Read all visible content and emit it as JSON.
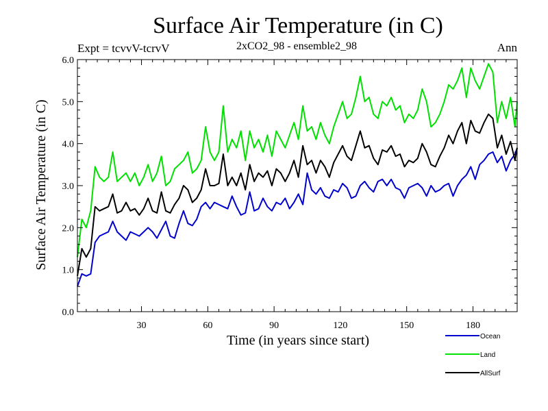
{
  "chart_data": {
    "type": "line",
    "title": "Surface Air Temperature (in C)",
    "subtitle": "2xCO2_98 - ensemble2_98",
    "left_label": "Expt = tcvvV-tcrvV",
    "right_label": "Ann",
    "xlabel": "Time (in years since start)",
    "ylabel": "Surface Air Temperature (in C)",
    "xlim": [
      1,
      200
    ],
    "ylim": [
      0,
      6
    ],
    "x_ticks": [
      30,
      60,
      90,
      120,
      150,
      180
    ],
    "x_tick_labels": [
      "30",
      "60",
      "90",
      "120",
      "150",
      "180"
    ],
    "y_ticks": [
      0,
      1,
      2,
      3,
      4,
      5,
      6
    ],
    "y_tick_labels": [
      "0.0",
      "1.0",
      "2.0",
      "3.0",
      "4.0",
      "5.0",
      "6.0"
    ],
    "grid": false,
    "legend_position": "bottom-right",
    "series": [
      {
        "name": "Ocean",
        "color": "#0000cc",
        "x": [
          1,
          3,
          5,
          7,
          9,
          11,
          13,
          15,
          17,
          19,
          21,
          23,
          25,
          27,
          29,
          31,
          33,
          35,
          37,
          39,
          41,
          43,
          45,
          47,
          49,
          51,
          53,
          55,
          57,
          59,
          61,
          63,
          65,
          67,
          69,
          71,
          73,
          75,
          77,
          79,
          81,
          83,
          85,
          87,
          89,
          91,
          93,
          95,
          97,
          99,
          101,
          103,
          105,
          107,
          109,
          111,
          113,
          115,
          117,
          119,
          121,
          123,
          125,
          127,
          129,
          131,
          133,
          135,
          137,
          139,
          141,
          143,
          145,
          147,
          149,
          151,
          153,
          155,
          157,
          159,
          161,
          163,
          165,
          167,
          169,
          171,
          173,
          175,
          177,
          179,
          181,
          183,
          185,
          187,
          189,
          191,
          193,
          195,
          197,
          199,
          200
        ],
        "values": [
          0.6,
          0.9,
          0.85,
          0.9,
          1.65,
          1.8,
          1.85,
          1.9,
          2.15,
          1.9,
          1.8,
          1.7,
          1.9,
          1.85,
          1.8,
          1.9,
          2.0,
          1.9,
          1.75,
          1.95,
          2.15,
          1.8,
          1.75,
          2.1,
          2.4,
          2.1,
          2.05,
          2.2,
          2.5,
          2.6,
          2.45,
          2.6,
          2.55,
          2.5,
          2.45,
          2.75,
          2.5,
          2.3,
          2.35,
          2.85,
          2.4,
          2.45,
          2.7,
          2.5,
          2.4,
          2.6,
          2.55,
          2.7,
          2.45,
          2.6,
          2.8,
          2.55,
          3.3,
          2.9,
          2.8,
          2.95,
          2.75,
          2.7,
          2.9,
          2.85,
          3.05,
          2.95,
          2.7,
          2.75,
          3.0,
          3.1,
          2.95,
          2.85,
          3.1,
          3.15,
          3.0,
          3.15,
          2.95,
          2.9,
          2.7,
          2.95,
          3.0,
          3.05,
          2.95,
          2.75,
          3.0,
          2.85,
          2.9,
          3.0,
          3.05,
          2.75,
          3.0,
          3.15,
          3.25,
          3.45,
          3.15,
          3.5,
          3.6,
          3.75,
          3.8,
          3.55,
          3.7,
          3.35,
          3.6,
          3.75,
          3.9
        ]
      },
      {
        "name": "Land",
        "color": "#00e000",
        "x": [
          1,
          3,
          5,
          7,
          9,
          11,
          13,
          15,
          17,
          19,
          21,
          23,
          25,
          27,
          29,
          31,
          33,
          35,
          37,
          39,
          41,
          43,
          45,
          47,
          49,
          51,
          53,
          55,
          57,
          59,
          61,
          63,
          65,
          67,
          69,
          71,
          73,
          75,
          77,
          79,
          81,
          83,
          85,
          87,
          89,
          91,
          93,
          95,
          97,
          99,
          101,
          103,
          105,
          107,
          109,
          111,
          113,
          115,
          117,
          119,
          121,
          123,
          125,
          127,
          129,
          131,
          133,
          135,
          137,
          139,
          141,
          143,
          145,
          147,
          149,
          151,
          153,
          155,
          157,
          159,
          161,
          163,
          165,
          167,
          169,
          171,
          173,
          175,
          177,
          179,
          181,
          183,
          185,
          187,
          189,
          191,
          193,
          195,
          197,
          199,
          200
        ],
        "values": [
          1.3,
          2.2,
          2.0,
          2.4,
          3.45,
          3.2,
          3.1,
          3.2,
          3.8,
          3.1,
          3.2,
          3.3,
          3.1,
          3.3,
          3.0,
          3.2,
          3.5,
          3.1,
          3.3,
          3.7,
          3.0,
          3.1,
          3.4,
          3.5,
          3.6,
          3.8,
          3.3,
          3.4,
          3.6,
          4.4,
          3.8,
          3.6,
          3.8,
          4.9,
          3.8,
          4.1,
          3.9,
          4.3,
          3.6,
          4.3,
          3.9,
          4.1,
          3.8,
          4.2,
          3.7,
          4.3,
          4.1,
          3.9,
          4.2,
          4.5,
          4.1,
          4.9,
          4.3,
          4.4,
          4.1,
          4.5,
          4.2,
          4.0,
          4.4,
          4.7,
          5.0,
          4.6,
          4.7,
          5.1,
          5.6,
          5.0,
          5.1,
          4.7,
          4.6,
          5.0,
          4.9,
          5.1,
          4.8,
          4.9,
          4.5,
          4.7,
          4.6,
          4.8,
          5.3,
          5.0,
          4.4,
          4.5,
          4.7,
          5.0,
          5.4,
          5.3,
          5.5,
          5.8,
          5.1,
          5.8,
          5.5,
          5.3,
          5.6,
          5.9,
          5.7,
          4.5,
          5.0,
          4.6,
          5.1,
          4.4,
          5.0
        ]
      },
      {
        "name": "AllSurf",
        "color": "#000000",
        "x": [
          1,
          3,
          5,
          7,
          9,
          11,
          13,
          15,
          17,
          19,
          21,
          23,
          25,
          27,
          29,
          31,
          33,
          35,
          37,
          39,
          41,
          43,
          45,
          47,
          49,
          51,
          53,
          55,
          57,
          59,
          61,
          63,
          65,
          67,
          69,
          71,
          73,
          75,
          77,
          79,
          81,
          83,
          85,
          87,
          89,
          91,
          93,
          95,
          97,
          99,
          101,
          103,
          105,
          107,
          109,
          111,
          113,
          115,
          117,
          119,
          121,
          123,
          125,
          127,
          129,
          131,
          133,
          135,
          137,
          139,
          141,
          143,
          145,
          147,
          149,
          151,
          153,
          155,
          157,
          159,
          161,
          163,
          165,
          167,
          169,
          171,
          173,
          175,
          177,
          179,
          181,
          183,
          185,
          187,
          189,
          191,
          193,
          195,
          197,
          199,
          200
        ],
        "values": [
          0.85,
          1.5,
          1.3,
          1.5,
          2.5,
          2.4,
          2.45,
          2.5,
          2.8,
          2.35,
          2.4,
          2.6,
          2.4,
          2.45,
          2.3,
          2.45,
          2.7,
          2.4,
          2.35,
          2.85,
          2.4,
          2.35,
          2.55,
          2.7,
          3.0,
          2.9,
          2.6,
          2.7,
          2.9,
          3.4,
          3.0,
          3.0,
          3.05,
          3.75,
          3.0,
          3.2,
          3.0,
          3.3,
          2.9,
          3.5,
          3.1,
          3.3,
          3.2,
          3.35,
          3.0,
          3.4,
          3.3,
          3.1,
          3.3,
          3.6,
          3.2,
          3.95,
          3.5,
          3.6,
          3.3,
          3.6,
          3.45,
          3.2,
          3.55,
          3.75,
          3.95,
          3.7,
          3.6,
          3.95,
          4.3,
          3.9,
          3.95,
          3.65,
          3.5,
          3.85,
          3.8,
          3.95,
          3.7,
          3.75,
          3.45,
          3.6,
          3.55,
          3.65,
          4.0,
          3.8,
          3.5,
          3.45,
          3.7,
          3.9,
          4.2,
          4.0,
          4.3,
          4.5,
          4.0,
          4.55,
          4.3,
          4.25,
          4.5,
          4.7,
          4.6,
          3.9,
          4.2,
          3.75,
          4.05,
          3.6,
          3.9
        ]
      }
    ]
  }
}
